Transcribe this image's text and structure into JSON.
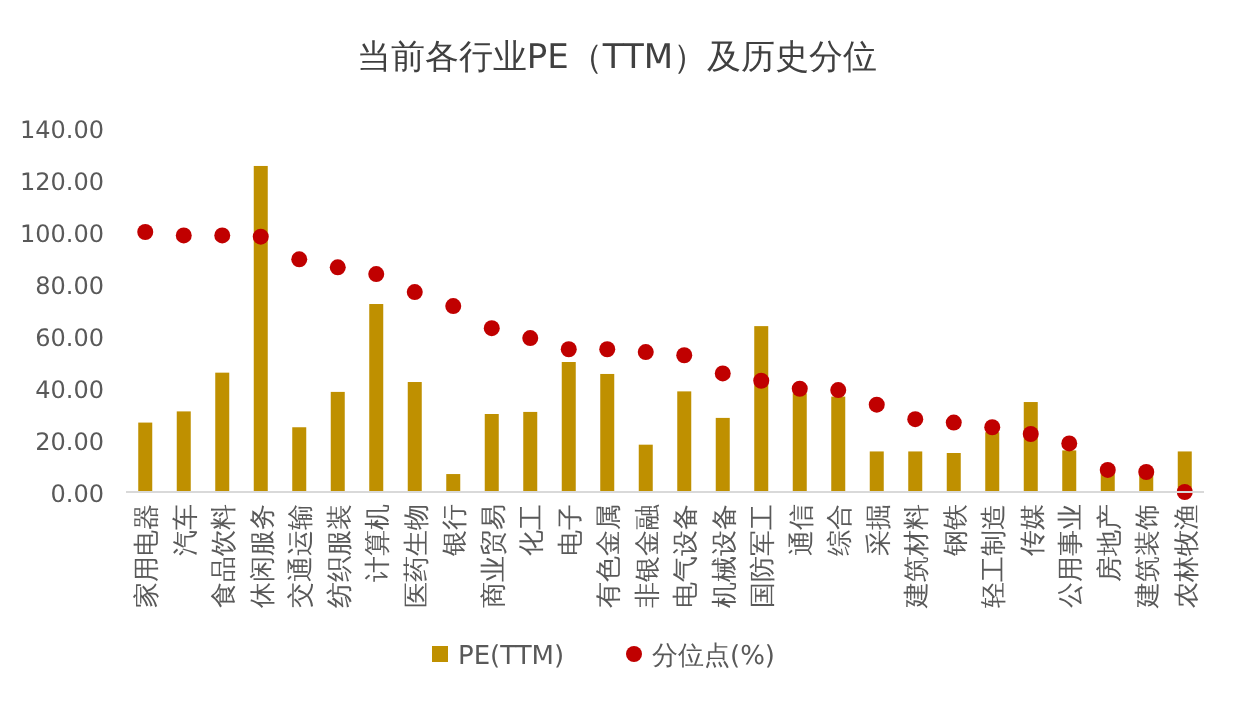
{
  "chart_data": {
    "type": "bar",
    "title": "当前各行业PE（TTM）及历史分位",
    "categories": [
      "家用电器",
      "汽车",
      "食品饮料",
      "休闲服务",
      "交通运输",
      "纺织服装",
      "计算机",
      "医药生物",
      "银行",
      "商业贸易",
      "化工",
      "电子",
      "有色金属",
      "非银金融",
      "电气设备",
      "机械设备",
      "国防军工",
      "通信",
      "综合",
      "采掘",
      "建筑材料",
      "钢铁",
      "轻工制造",
      "传媒",
      "公用事业",
      "房地产",
      "建筑装饰",
      "农林牧渔"
    ],
    "series": [
      {
        "name": "PE(TTM)",
        "color": "#bf9000",
        "values": [
          26.7,
          31,
          45.9,
          125.4,
          24.9,
          38.5,
          72.3,
          42.3,
          6.9,
          30,
          30.8,
          50,
          45.4,
          18.2,
          38.7,
          28.5,
          63.8,
          38,
          36.7,
          15.6,
          15.6,
          15,
          23,
          34.6,
          16,
          7.5,
          7,
          15.6
        ]
      },
      {
        "name": "分位点(%)",
        "type": "scatter",
        "marker": "circle",
        "color": "#c00000",
        "values": [
          100,
          98.7,
          98.7,
          98.2,
          89.5,
          86.4,
          83.8,
          76.9,
          71.5,
          63,
          59.2,
          54.9,
          54.9,
          53.8,
          52.6,
          45.6,
          42.8,
          39.7,
          39.2,
          33.6,
          28,
          26.7,
          24.9,
          22.3,
          18.7,
          8.5,
          7.7,
          0
        ]
      }
    ],
    "ylim": [
      0,
      140
    ],
    "yticks": [
      {
        "value": 0,
        "label": "0.00"
      },
      {
        "value": 20,
        "label": "20.00"
      },
      {
        "value": 40,
        "label": "40.00"
      },
      {
        "value": 60,
        "label": "60.00"
      },
      {
        "value": 80,
        "label": "80.00"
      },
      {
        "value": 100,
        "label": "100.00"
      },
      {
        "value": 120,
        "label": "120.00"
      },
      {
        "value": 140,
        "label": "140.00"
      }
    ],
    "grid": false,
    "legend": "bottom"
  }
}
